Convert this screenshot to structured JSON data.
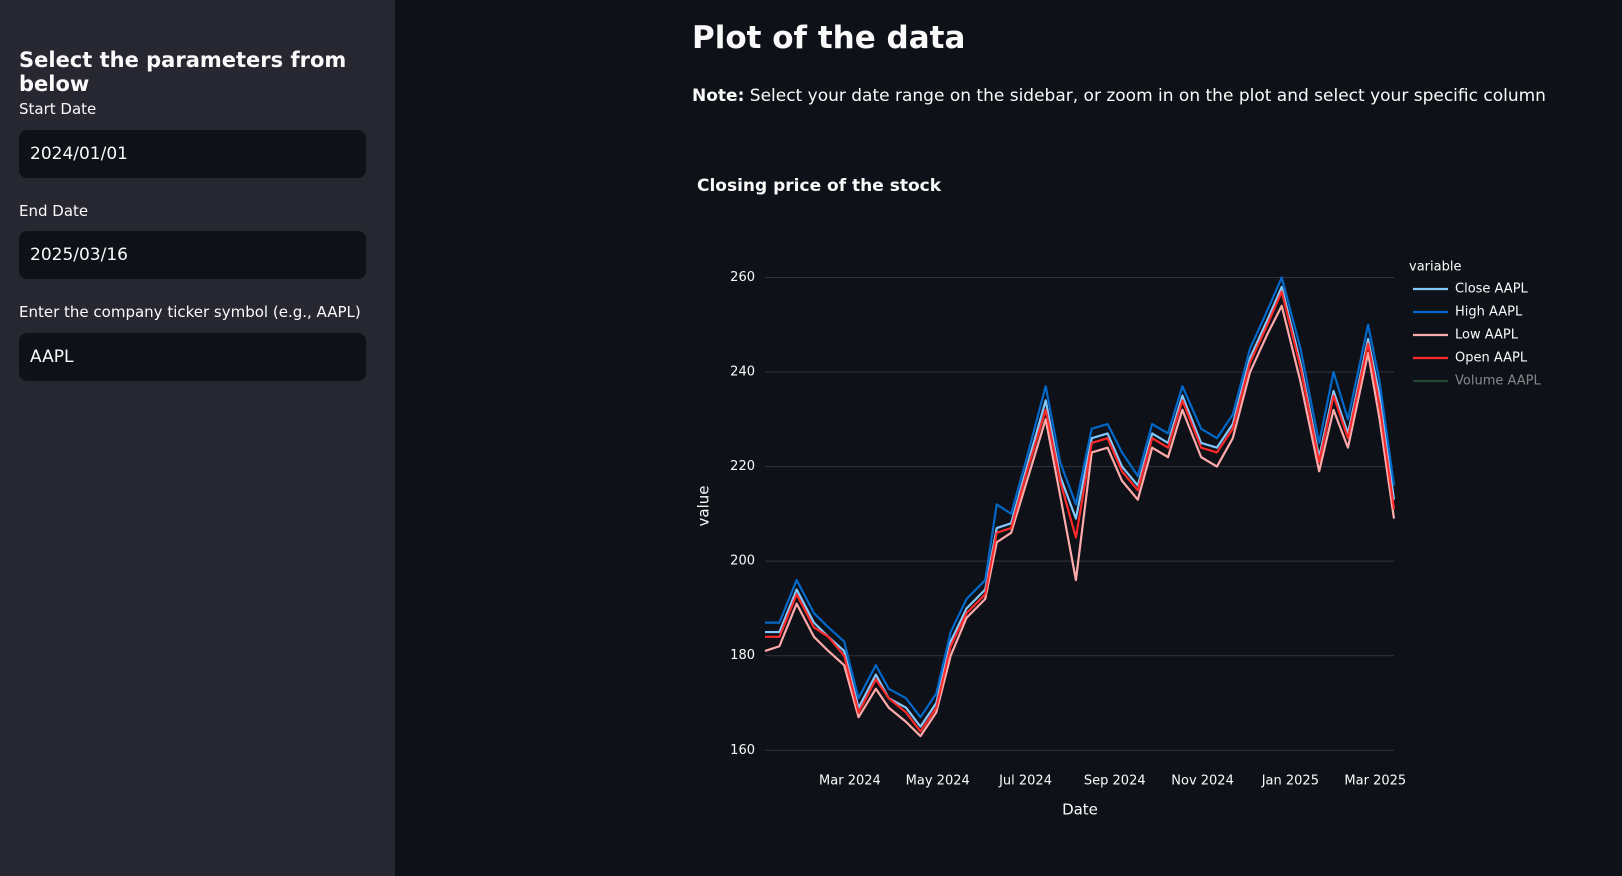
{
  "sidebar": {
    "header": "Select the parameters from below",
    "fields": [
      {
        "label": "Start Date",
        "value": "2024/01/01"
      },
      {
        "label": "End Date",
        "value": "2025/03/16"
      },
      {
        "label": "Enter the company ticker symbol (e.g., AAPL)",
        "value": "AAPL"
      }
    ]
  },
  "main": {
    "title": "Plot of the data",
    "note_label": "Note:",
    "note": "Select your date range on the sidebar, or zoom in on the plot and select your specific column"
  },
  "chart_data": {
    "type": "line",
    "title": "Closing price of the stock",
    "x_label": "Date",
    "y_label": "value",
    "legend_title": "variable",
    "x": [
      "2024-01-02",
      "2024-01-12",
      "2024-01-24",
      "2024-02-05",
      "2024-02-15",
      "2024-02-26",
      "2024-03-07",
      "2024-03-19",
      "2024-03-28",
      "2024-04-09",
      "2024-04-19",
      "2024-04-30",
      "2024-05-10",
      "2024-05-21",
      "2024-06-03",
      "2024-06-11",
      "2024-06-21",
      "2024-07-02",
      "2024-07-15",
      "2024-07-25",
      "2024-08-05",
      "2024-08-16",
      "2024-08-27",
      "2024-09-06",
      "2024-09-17",
      "2024-09-27",
      "2024-10-08",
      "2024-10-18",
      "2024-10-31",
      "2024-11-11",
      "2024-11-22",
      "2024-12-04",
      "2024-12-16",
      "2024-12-26",
      "2025-01-08",
      "2025-01-21",
      "2025-01-31",
      "2025-02-10",
      "2025-02-24",
      "2025-03-04",
      "2025-03-14"
    ],
    "series": [
      {
        "name": "Close AAPL",
        "color": "#83c9ff",
        "values": [
          185,
          185,
          194,
          187,
          184,
          181,
          169,
          176,
          171,
          169,
          165,
          170,
          183,
          190,
          194,
          207,
          208,
          220,
          234,
          218,
          209,
          226,
          227,
          220,
          216,
          227,
          225,
          235,
          225,
          224,
          229,
          243,
          251,
          258,
          242,
          222,
          236,
          227,
          247,
          235,
          213
        ]
      },
      {
        "name": "High AAPL",
        "color": "#0068c9",
        "values": [
          187,
          187,
          196,
          189,
          186,
          183,
          171,
          178,
          173,
          171,
          167,
          172,
          185,
          192,
          196,
          212,
          210,
          222,
          237,
          221,
          212,
          228,
          229,
          223,
          218,
          229,
          227,
          237,
          228,
          226,
          231,
          245,
          253,
          260,
          245,
          225,
          240,
          230,
          250,
          238,
          216
        ]
      },
      {
        "name": "Low AAPL",
        "color": "#ffabab",
        "values": [
          181,
          182,
          191,
          184,
          181,
          178,
          167,
          173,
          169,
          166,
          163,
          168,
          180,
          188,
          192,
          204,
          206,
          217,
          230,
          214,
          196,
          223,
          224,
          217,
          213,
          224,
          222,
          232,
          222,
          220,
          226,
          240,
          248,
          254,
          238,
          219,
          232,
          224,
          244,
          230,
          209
        ]
      },
      {
        "name": "Open AAPL",
        "color": "#ff2b2b",
        "values": [
          184,
          184,
          193,
          186,
          184,
          180,
          168,
          175,
          171,
          168,
          164,
          169,
          182,
          189,
          193,
          206,
          207,
          219,
          232,
          217,
          205,
          225,
          226,
          219,
          215,
          226,
          224,
          234,
          224,
          223,
          228,
          242,
          250,
          257,
          241,
          221,
          235,
          226,
          246,
          233,
          211
        ]
      }
    ],
    "hidden_series": [
      {
        "name": "Volume AAPL",
        "color": "#3a7a4e"
      }
    ],
    "xlim": [
      "2024-01-02",
      "2025-03-14"
    ],
    "xticks": [
      {
        "value": "2024-03-01",
        "label": "Mar 2024"
      },
      {
        "value": "2024-05-01",
        "label": "May 2024"
      },
      {
        "value": "2024-07-01",
        "label": "Jul 2024"
      },
      {
        "value": "2024-09-01",
        "label": "Sep 2024"
      },
      {
        "value": "2024-11-01",
        "label": "Nov 2024"
      },
      {
        "value": "2025-01-01",
        "label": "Jan 2025"
      },
      {
        "value": "2025-03-01",
        "label": "Mar 2025"
      }
    ],
    "ylim": [
      159,
      262
    ],
    "yticks": [
      160,
      180,
      200,
      220,
      240,
      260
    ],
    "grid": true
  }
}
